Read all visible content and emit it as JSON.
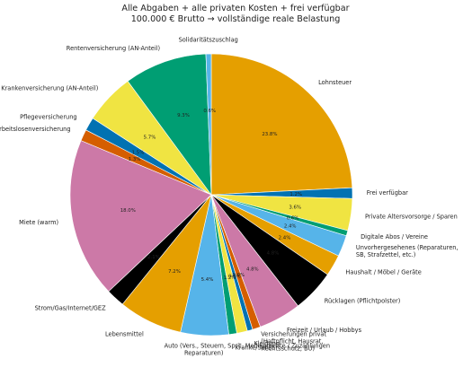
{
  "chart_data": {
    "type": "pie",
    "title": "Alle Abgaben + alle privaten Kosten + frei verfügbar",
    "subtitle": "100.000 € Brutto → vollständige reale Belastung",
    "start_angle_deg": 90,
    "direction": "clockwise",
    "slices": [
      {
        "label": "Lohnsteuer",
        "value": 23.8,
        "pct_label": "23.8%",
        "color": "#e59f00"
      },
      {
        "label": "Frei verfügbar",
        "value": 1.2,
        "pct_label": "1.2%",
        "color": "#0172b2"
      },
      {
        "label": "Private Altersvorsorge / Sparen",
        "value": 3.6,
        "pct_label": "3.6%",
        "color": "#f0e442"
      },
      {
        "label": "Digitale Abos / Vereine",
        "value": 0.6,
        "pct_label": "0.6%",
        "color": "#009e73"
      },
      {
        "label": "Unvorhergesehenes (Reparaturen, SB, Strafzettel, etc.)",
        "value": 2.4,
        "pct_label": "2.4%",
        "color": "#56b4e9"
      },
      {
        "label": "Haushalt / Möbel / Geräte",
        "value": 2.4,
        "pct_label": "2.4%",
        "color": "#e59f00"
      },
      {
        "label": "Rücklagen (Pflichtpolster)",
        "value": 4.8,
        "pct_label": "4.8%",
        "color": "#000000"
      },
      {
        "label": "Freizeit / Urlaub / Hobbys",
        "value": 4.8,
        "pct_label": "4.8%",
        "color": "#cc79a7"
      },
      {
        "label": "Versicherungen privat (Haftpflicht, Hausrat, Rechtsschutz, BU)",
        "value": 0.9,
        "pct_label": "0.9%",
        "color": "#d55e00"
      },
      {
        "label": "Kleidung",
        "value": 0.6,
        "pct_label": "0.6%",
        "color": "#0172b2"
      },
      {
        "label": "Medikamente / Zuzahlungen",
        "value": 1.2,
        "pct_label": "1.2%",
        "color": "#f0e442"
      },
      {
        "label": "Kranke/Sonst",
        "value": 0.9,
        "pct_label": "",
        "color": "#009e73"
      },
      {
        "label": "Auto (Vers., Steuern, Sprit, Reparaturen)",
        "value": 5.4,
        "pct_label": "5.4%",
        "color": "#56b4e9"
      },
      {
        "label": "Lebensmittel",
        "value": 7.2,
        "pct_label": "7.2%",
        "color": "#e59f00"
      },
      {
        "label": "Strom/Gas/Internet/GEZ",
        "value": 2.1,
        "pct_label": "2.1%",
        "color": "#000000"
      },
      {
        "label": "Miete (warm)",
        "value": 18.0,
        "pct_label": "18.0%",
        "color": "#cc79a7"
      },
      {
        "label": "Arbeitslosenversicherung",
        "value": 1.3,
        "pct_label": "1.3%",
        "color": "#d55e00"
      },
      {
        "label": "Pflegeversicherung",
        "value": 1.5,
        "pct_label": "1.5%",
        "color": "#0172b2"
      },
      {
        "label": "Krankenversicherung (AN-Anteil)",
        "value": 5.7,
        "pct_label": "5.7%",
        "color": "#f0e442"
      },
      {
        "label": "Rentenversicherung (AN-Anteil)",
        "value": 9.3,
        "pct_label": "9.3%",
        "color": "#009e73"
      },
      {
        "label": "Solidaritätszuschlag",
        "value": 0.6,
        "pct_label": "0.6%",
        "color": "#56b4e9"
      }
    ]
  }
}
